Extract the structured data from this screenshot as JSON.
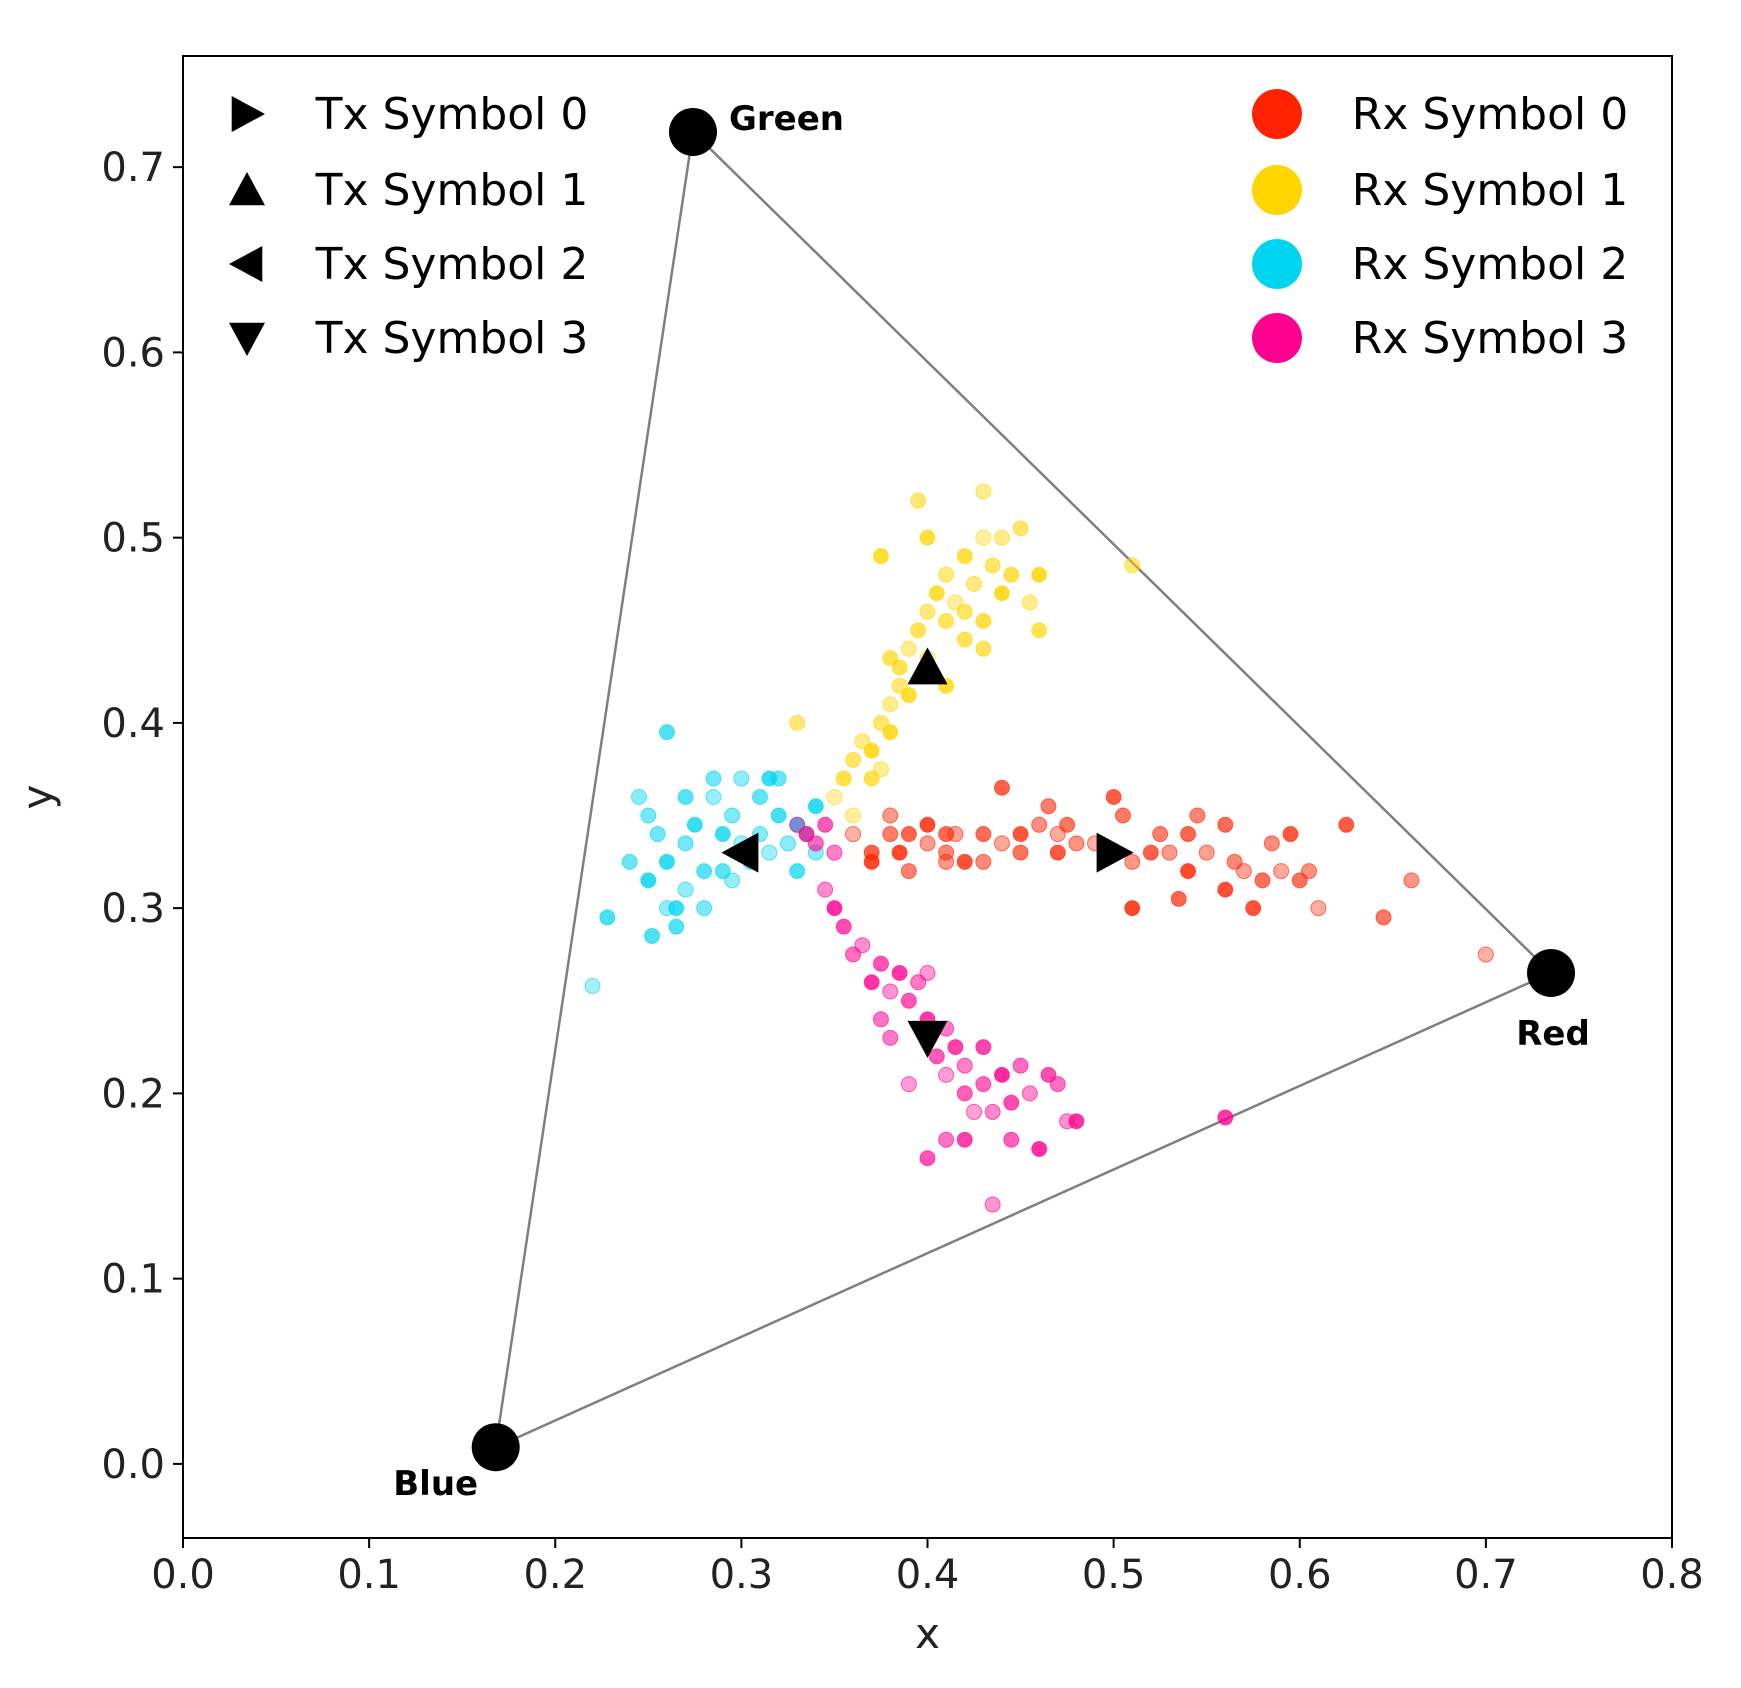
{
  "chart_data": {
    "type": "scatter",
    "title": "",
    "xlabel": "x",
    "ylabel": "y",
    "xlim": [
      0.0,
      0.8
    ],
    "ylim": [
      -0.04,
      0.76
    ],
    "grid": false,
    "xticks": [
      "0.0",
      "0.1",
      "0.2",
      "0.3",
      "0.4",
      "0.5",
      "0.6",
      "0.7",
      "0.8"
    ],
    "yticks": [
      "0.0",
      "0.1",
      "0.2",
      "0.3",
      "0.4",
      "0.5",
      "0.6",
      "0.7"
    ],
    "gamut": {
      "edge_color": "#7f7f7f",
      "vertices": [
        {
          "label": "Green",
          "x": 0.274,
          "y": 0.719
        },
        {
          "label": "Red",
          "x": 0.735,
          "y": 0.265
        },
        {
          "label": "Blue",
          "x": 0.168,
          "y": 0.009
        }
      ]
    },
    "tx_symbols": [
      {
        "name": "Tx Symbol 0",
        "marker": "triangle-right",
        "x": 0.5,
        "y": 0.33
      },
      {
        "name": "Tx Symbol 1",
        "marker": "triangle-up",
        "x": 0.4,
        "y": 0.43
      },
      {
        "name": "Tx Symbol 2",
        "marker": "triangle-left",
        "x": 0.3,
        "y": 0.33
      },
      {
        "name": "Tx Symbol 3",
        "marker": "triangle-down",
        "x": 0.4,
        "y": 0.23
      }
    ],
    "rx_series": [
      {
        "name": "Rx Symbol 0",
        "color": "#ff2200",
        "points": [
          [
            0.36,
            0.34
          ],
          [
            0.37,
            0.33
          ],
          [
            0.38,
            0.34
          ],
          [
            0.38,
            0.35
          ],
          [
            0.385,
            0.33
          ],
          [
            0.39,
            0.34
          ],
          [
            0.39,
            0.32
          ],
          [
            0.4,
            0.335
          ],
          [
            0.4,
            0.345
          ],
          [
            0.41,
            0.34
          ],
          [
            0.41,
            0.33
          ],
          [
            0.415,
            0.34
          ],
          [
            0.42,
            0.325
          ],
          [
            0.43,
            0.34
          ],
          [
            0.43,
            0.325
          ],
          [
            0.44,
            0.335
          ],
          [
            0.45,
            0.34
          ],
          [
            0.45,
            0.33
          ],
          [
            0.46,
            0.345
          ],
          [
            0.47,
            0.34
          ],
          [
            0.47,
            0.33
          ],
          [
            0.475,
            0.345
          ],
          [
            0.48,
            0.335
          ],
          [
            0.49,
            0.335
          ],
          [
            0.5,
            0.36
          ],
          [
            0.505,
            0.35
          ],
          [
            0.51,
            0.325
          ],
          [
            0.51,
            0.3
          ],
          [
            0.52,
            0.33
          ],
          [
            0.525,
            0.34
          ],
          [
            0.53,
            0.33
          ],
          [
            0.54,
            0.32
          ],
          [
            0.54,
            0.34
          ],
          [
            0.545,
            0.35
          ],
          [
            0.55,
            0.33
          ],
          [
            0.56,
            0.31
          ],
          [
            0.56,
            0.345
          ],
          [
            0.565,
            0.325
          ],
          [
            0.57,
            0.32
          ],
          [
            0.575,
            0.3
          ],
          [
            0.58,
            0.315
          ],
          [
            0.585,
            0.335
          ],
          [
            0.59,
            0.32
          ],
          [
            0.595,
            0.34
          ],
          [
            0.6,
            0.315
          ],
          [
            0.605,
            0.32
          ],
          [
            0.61,
            0.3
          ],
          [
            0.625,
            0.345
          ],
          [
            0.645,
            0.295
          ],
          [
            0.66,
            0.315
          ],
          [
            0.7,
            0.275
          ],
          [
            0.44,
            0.365
          ],
          [
            0.465,
            0.355
          ],
          [
            0.41,
            0.325
          ],
          [
            0.37,
            0.325
          ],
          [
            0.535,
            0.305
          ]
        ]
      },
      {
        "name": "Rx Symbol 1",
        "color": "#ffd500",
        "points": [
          [
            0.35,
            0.36
          ],
          [
            0.355,
            0.37
          ],
          [
            0.36,
            0.38
          ],
          [
            0.365,
            0.39
          ],
          [
            0.37,
            0.385
          ],
          [
            0.37,
            0.37
          ],
          [
            0.375,
            0.4
          ],
          [
            0.38,
            0.41
          ],
          [
            0.38,
            0.395
          ],
          [
            0.385,
            0.43
          ],
          [
            0.385,
            0.42
          ],
          [
            0.39,
            0.44
          ],
          [
            0.39,
            0.415
          ],
          [
            0.395,
            0.45
          ],
          [
            0.4,
            0.46
          ],
          [
            0.4,
            0.435
          ],
          [
            0.405,
            0.47
          ],
          [
            0.41,
            0.455
          ],
          [
            0.41,
            0.48
          ],
          [
            0.415,
            0.465
          ],
          [
            0.42,
            0.49
          ],
          [
            0.42,
            0.46
          ],
          [
            0.425,
            0.475
          ],
          [
            0.43,
            0.5
          ],
          [
            0.43,
            0.455
          ],
          [
            0.435,
            0.485
          ],
          [
            0.44,
            0.5
          ],
          [
            0.44,
            0.47
          ],
          [
            0.445,
            0.48
          ],
          [
            0.45,
            0.505
          ],
          [
            0.455,
            0.465
          ],
          [
            0.46,
            0.48
          ],
          [
            0.46,
            0.45
          ],
          [
            0.395,
            0.52
          ],
          [
            0.43,
            0.525
          ],
          [
            0.375,
            0.49
          ],
          [
            0.38,
            0.435
          ],
          [
            0.33,
            0.4
          ],
          [
            0.375,
            0.375
          ],
          [
            0.41,
            0.42
          ],
          [
            0.42,
            0.445
          ],
          [
            0.51,
            0.485
          ],
          [
            0.36,
            0.35
          ],
          [
            0.4,
            0.5
          ],
          [
            0.43,
            0.44
          ]
        ]
      },
      {
        "name": "Rx Symbol 2",
        "color": "#00d5f0",
        "points": [
          [
            0.22,
            0.258
          ],
          [
            0.228,
            0.295
          ],
          [
            0.24,
            0.325
          ],
          [
            0.245,
            0.36
          ],
          [
            0.25,
            0.315
          ],
          [
            0.252,
            0.285
          ],
          [
            0.255,
            0.34
          ],
          [
            0.26,
            0.3
          ],
          [
            0.26,
            0.325
          ],
          [
            0.265,
            0.29
          ],
          [
            0.27,
            0.335
          ],
          [
            0.27,
            0.31
          ],
          [
            0.275,
            0.345
          ],
          [
            0.28,
            0.32
          ],
          [
            0.28,
            0.3
          ],
          [
            0.285,
            0.36
          ],
          [
            0.29,
            0.34
          ],
          [
            0.29,
            0.32
          ],
          [
            0.295,
            0.35
          ],
          [
            0.3,
            0.335
          ],
          [
            0.305,
            0.325
          ],
          [
            0.31,
            0.36
          ],
          [
            0.31,
            0.34
          ],
          [
            0.315,
            0.33
          ],
          [
            0.32,
            0.35
          ],
          [
            0.32,
            0.37
          ],
          [
            0.325,
            0.335
          ],
          [
            0.33,
            0.345
          ],
          [
            0.33,
            0.32
          ],
          [
            0.335,
            0.34
          ],
          [
            0.34,
            0.33
          ],
          [
            0.34,
            0.355
          ],
          [
            0.26,
            0.395
          ],
          [
            0.285,
            0.37
          ],
          [
            0.3,
            0.37
          ],
          [
            0.315,
            0.37
          ],
          [
            0.27,
            0.36
          ],
          [
            0.25,
            0.35
          ],
          [
            0.295,
            0.315
          ],
          [
            0.265,
            0.3
          ]
        ]
      },
      {
        "name": "Rx Symbol 3",
        "color": "#ff0090",
        "points": [
          [
            0.33,
            0.345
          ],
          [
            0.335,
            0.34
          ],
          [
            0.34,
            0.335
          ],
          [
            0.345,
            0.31
          ],
          [
            0.35,
            0.3
          ],
          [
            0.355,
            0.29
          ],
          [
            0.36,
            0.275
          ],
          [
            0.365,
            0.28
          ],
          [
            0.37,
            0.26
          ],
          [
            0.375,
            0.27
          ],
          [
            0.375,
            0.24
          ],
          [
            0.38,
            0.255
          ],
          [
            0.385,
            0.265
          ],
          [
            0.39,
            0.25
          ],
          [
            0.395,
            0.26
          ],
          [
            0.4,
            0.265
          ],
          [
            0.4,
            0.24
          ],
          [
            0.405,
            0.22
          ],
          [
            0.41,
            0.235
          ],
          [
            0.41,
            0.21
          ],
          [
            0.415,
            0.225
          ],
          [
            0.42,
            0.2
          ],
          [
            0.42,
            0.215
          ],
          [
            0.425,
            0.19
          ],
          [
            0.43,
            0.225
          ],
          [
            0.43,
            0.205
          ],
          [
            0.435,
            0.19
          ],
          [
            0.44,
            0.21
          ],
          [
            0.445,
            0.195
          ],
          [
            0.45,
            0.215
          ],
          [
            0.455,
            0.2
          ],
          [
            0.46,
            0.17
          ],
          [
            0.465,
            0.21
          ],
          [
            0.47,
            0.205
          ],
          [
            0.475,
            0.185
          ],
          [
            0.48,
            0.185
          ],
          [
            0.4,
            0.165
          ],
          [
            0.41,
            0.175
          ],
          [
            0.435,
            0.14
          ],
          [
            0.56,
            0.187
          ],
          [
            0.345,
            0.345
          ],
          [
            0.38,
            0.23
          ],
          [
            0.39,
            0.205
          ],
          [
            0.42,
            0.175
          ],
          [
            0.445,
            0.175
          ],
          [
            0.35,
            0.33
          ]
        ]
      }
    ],
    "legend_tx_position": "top-left",
    "legend_rx_position": "top-right"
  }
}
